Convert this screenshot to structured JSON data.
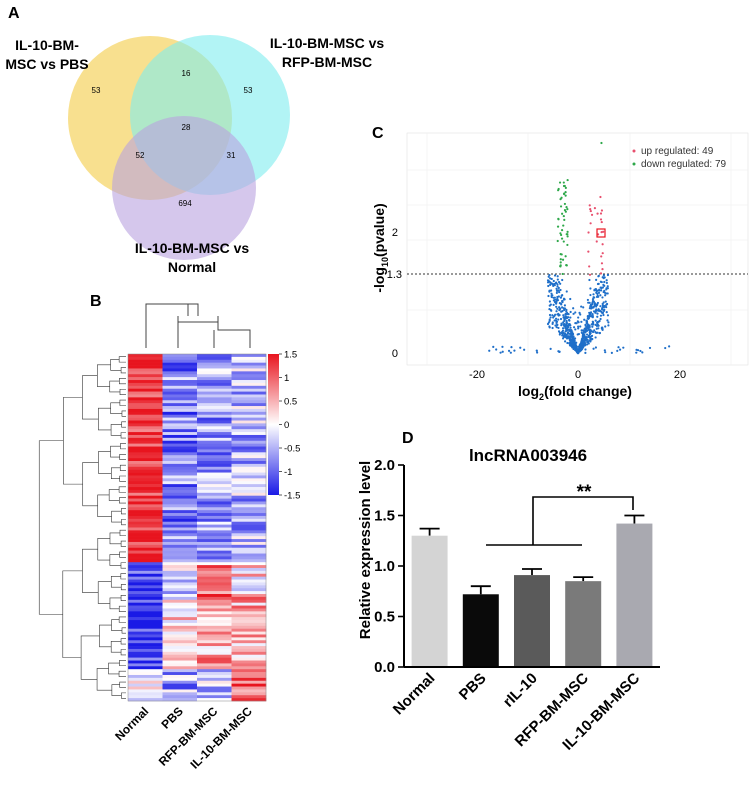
{
  "panel_a": {
    "letter": "A",
    "sets": [
      {
        "label_lines": [
          "IL-10-BM-",
          "MSC vs PBS"
        ],
        "color": "#f6d66a"
      },
      {
        "label_lines": [
          "IL-10-BM-MSC vs",
          "RFP-BM-MSC"
        ],
        "color": "#7fecef"
      },
      {
        "label_lines": [
          "IL-10-BM-MSC vs",
          "Normal"
        ],
        "color": "#b9a1df"
      }
    ],
    "counts": {
      "only_1": "53",
      "only_2": "53",
      "only_3": "694",
      "ab": "16",
      "ac": "52",
      "bc": "31",
      "abc": "28"
    }
  },
  "panel_b": {
    "letter": "B",
    "scale_ticks": [
      "1.5",
      "1",
      "0.5",
      "0",
      "-0.5",
      "-1",
      "-1.5"
    ],
    "columns": [
      "Normal",
      "PBS",
      "RFP-BM-MSC",
      "IL-10-BM-MSC"
    ],
    "color_high": "#e8141e",
    "color_mid": "#ffffff",
    "color_low": "#1a1ae6"
  },
  "panel_c": {
    "letter": "C",
    "legend": {
      "up": "up regulated: 49",
      "down": "down regulated: 79"
    },
    "y_label_main": "-log",
    "y_label_sub": "10",
    "y_label_tail": "(pvalue)",
    "x_label_main": "log",
    "x_label_sub": "2",
    "x_label_tail": "(fold change)",
    "y_ticks": [
      "0",
      "1.3",
      "2"
    ],
    "x_ticks": [
      "-20",
      "0",
      "20"
    ],
    "color_up": "#e8506e",
    "color_down": "#2ea84a",
    "color_ns": "#1f6fc9"
  },
  "panel_d": {
    "letter": "D",
    "significance": "**",
    "chart_data": {
      "type": "bar",
      "title": "lncRNA003946",
      "ylabel": "Relative expression level",
      "xlabel": "",
      "categories": [
        "Normal",
        "PBS",
        "rIL-10",
        "RFP-BM-MSC",
        "IL-10-BM-MSC"
      ],
      "values": [
        1.3,
        0.72,
        0.91,
        0.85,
        1.42
      ],
      "errors": [
        0.07,
        0.08,
        0.06,
        0.04,
        0.08
      ],
      "colors": [
        "#d4d4d4",
        "#0a0a0a",
        "#5a5a5a",
        "#7a7a7a",
        "#a9a9b0"
      ],
      "ylim": [
        0,
        2.0
      ],
      "yticks": [
        "0.0",
        "0.5",
        "1.0",
        "1.5",
        "2.0"
      ]
    }
  }
}
